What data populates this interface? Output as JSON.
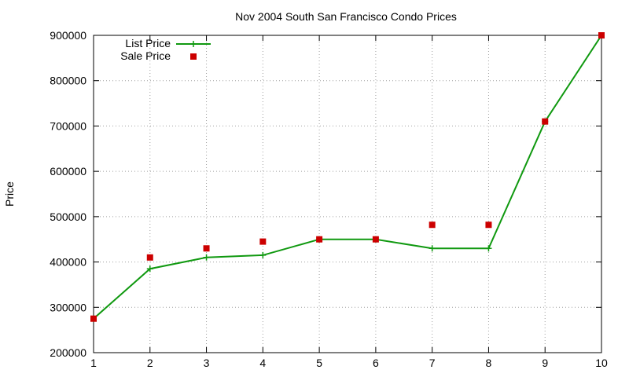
{
  "chart_data": {
    "type": "line",
    "title": "Nov 2004 South San Francisco Condo Prices",
    "xlabel": "",
    "ylabel": "Price",
    "xlim": [
      1,
      10
    ],
    "ylim": [
      200000,
      900000
    ],
    "x_ticks": [
      "1",
      "2",
      "3",
      "4",
      "5",
      "6",
      "7",
      "8",
      "9",
      "10"
    ],
    "y_ticks": [
      "200000",
      "300000",
      "400000",
      "500000",
      "600000",
      "700000",
      "800000",
      "900000"
    ],
    "grid": true,
    "legend_position": "top-left",
    "x": [
      1,
      2,
      3,
      4,
      5,
      6,
      7,
      8,
      9,
      10
    ],
    "series": [
      {
        "name": "List Price",
        "style": "line-with-plus-markers",
        "color": "#109910",
        "values": [
          275000,
          385000,
          410000,
          415000,
          450000,
          450000,
          430000,
          430000,
          710000,
          900000
        ]
      },
      {
        "name": "Sale Price",
        "style": "square-points",
        "color": "#cc0000",
        "values": [
          275000,
          410000,
          430000,
          445000,
          450000,
          450000,
          482000,
          482000,
          710000,
          900000
        ]
      }
    ]
  }
}
